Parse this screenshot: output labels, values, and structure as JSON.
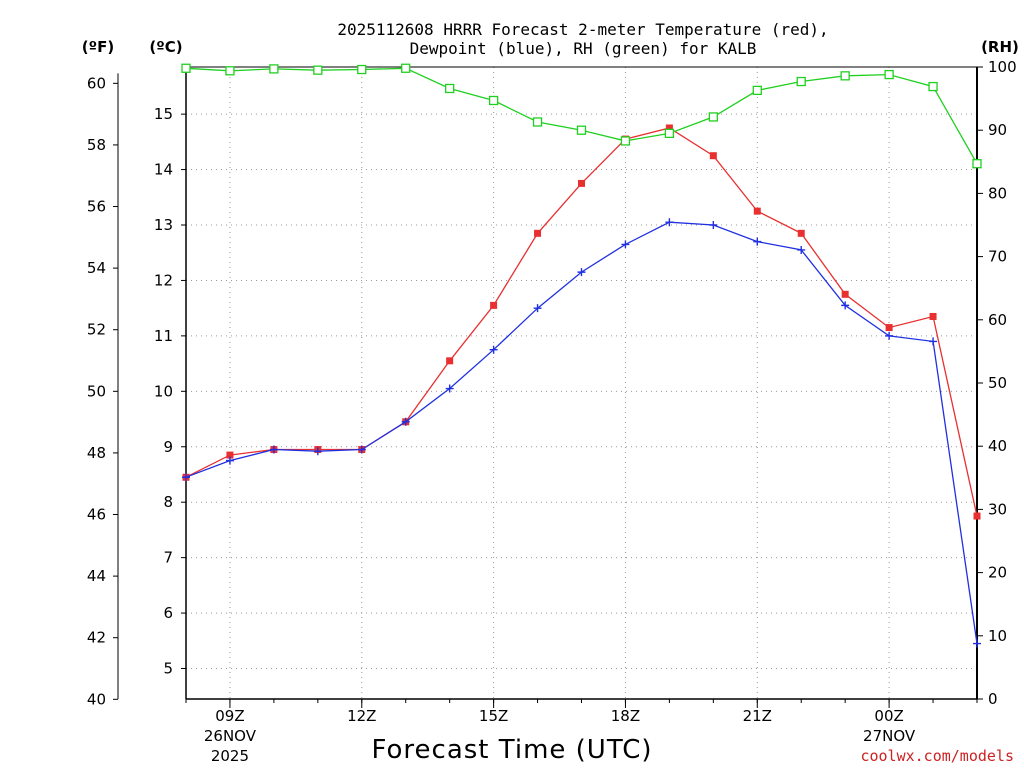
{
  "chart_data": {
    "type": "line",
    "title_line1": "2025112608 HRRR Forecast 2-meter Temperature (red),",
    "title_line2": "Dewpoint (blue), RH (green) for KALB",
    "xlabel": "Forecast Time (UTC)",
    "left_outer_unit": "(ºF)",
    "left_inner_unit": "(ºC)",
    "right_unit": "(RH)",
    "x_hours": [
      8,
      9,
      10,
      11,
      12,
      13,
      14,
      15,
      16,
      17,
      18,
      19,
      20,
      21,
      22,
      23,
      24,
      25,
      26
    ],
    "x_ticks": [
      {
        "hour": 9,
        "label": "09Z",
        "date": "26NOV",
        "year": "2025"
      },
      {
        "hour": 12,
        "label": "12Z",
        "date": "",
        "year": ""
      },
      {
        "hour": 15,
        "label": "15Z",
        "date": "",
        "year": ""
      },
      {
        "hour": 18,
        "label": "18Z",
        "date": "",
        "year": ""
      },
      {
        "hour": 21,
        "label": "21Z",
        "date": "",
        "year": ""
      },
      {
        "hour": 24,
        "label": "00Z",
        "date": "27NOV",
        "year": ""
      }
    ],
    "xlim": [
      8,
      26
    ],
    "celsius_lim": [
      4.45,
      15.85
    ],
    "fahrenheit_ticks": [
      40,
      42,
      44,
      46,
      48,
      50,
      52,
      54,
      56,
      58,
      60
    ],
    "celsius_ticks": [
      5,
      6,
      7,
      8,
      9,
      10,
      11,
      12,
      13,
      14,
      15
    ],
    "rh_ticks": [
      0,
      10,
      20,
      30,
      40,
      50,
      60,
      70,
      80,
      90,
      100
    ],
    "rh_lim": [
      0,
      100
    ],
    "series": [
      {
        "name": "Temperature",
        "unit": "C",
        "color": "#e83030",
        "marker": "filled-square",
        "values": [
          8.45,
          8.85,
          8.95,
          8.95,
          8.95,
          9.45,
          10.55,
          11.55,
          12.85,
          13.75,
          14.55,
          14.75,
          14.25,
          13.25,
          12.85,
          11.75,
          11.15,
          11.35,
          7.75
        ]
      },
      {
        "name": "Dewpoint",
        "unit": "C",
        "color": "#2030e0",
        "marker": "plus",
        "values": [
          8.45,
          8.75,
          8.95,
          8.92,
          8.95,
          9.45,
          10.05,
          10.75,
          11.5,
          12.15,
          12.65,
          13.05,
          13.0,
          12.7,
          12.55,
          11.55,
          11.0,
          10.9,
          5.45
        ]
      },
      {
        "name": "RH",
        "unit": "%",
        "color": "#20d020",
        "marker": "open-square",
        "values": [
          99.8,
          99.4,
          99.7,
          99.5,
          99.6,
          99.8,
          96.6,
          94.7,
          91.3,
          90.0,
          88.3,
          89.5,
          92.1,
          96.3,
          97.7,
          98.6,
          98.8,
          96.9,
          84.7
        ]
      }
    ]
  },
  "credit": "coolwx.com/models",
  "colors": {
    "credit": "#cc2222",
    "grid": "#999999",
    "axis": "#000000"
  }
}
